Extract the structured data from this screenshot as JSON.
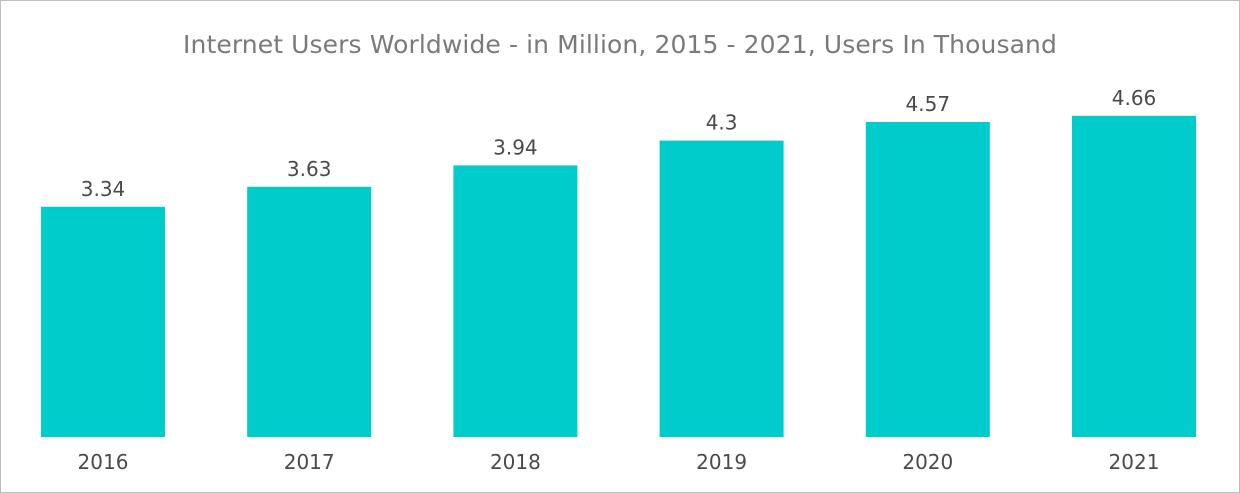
{
  "chart_data": {
    "type": "bar",
    "title": "Internet Users Worldwide - in Million, 2015 - 2021, Users In Thousand",
    "categories": [
      "2016",
      "2017",
      "2018",
      "2019",
      "2020",
      "2021"
    ],
    "values": [
      3.34,
      3.63,
      3.94,
      4.3,
      4.57,
      4.66
    ],
    "value_labels": [
      "3.34",
      "3.63",
      "3.94",
      "4.3",
      "4.57",
      "4.66"
    ],
    "xlabel": "",
    "ylabel": "",
    "ylim": [
      0,
      5.31
    ],
    "grid": false,
    "legend": "none",
    "bar_color": "#00cccc"
  }
}
